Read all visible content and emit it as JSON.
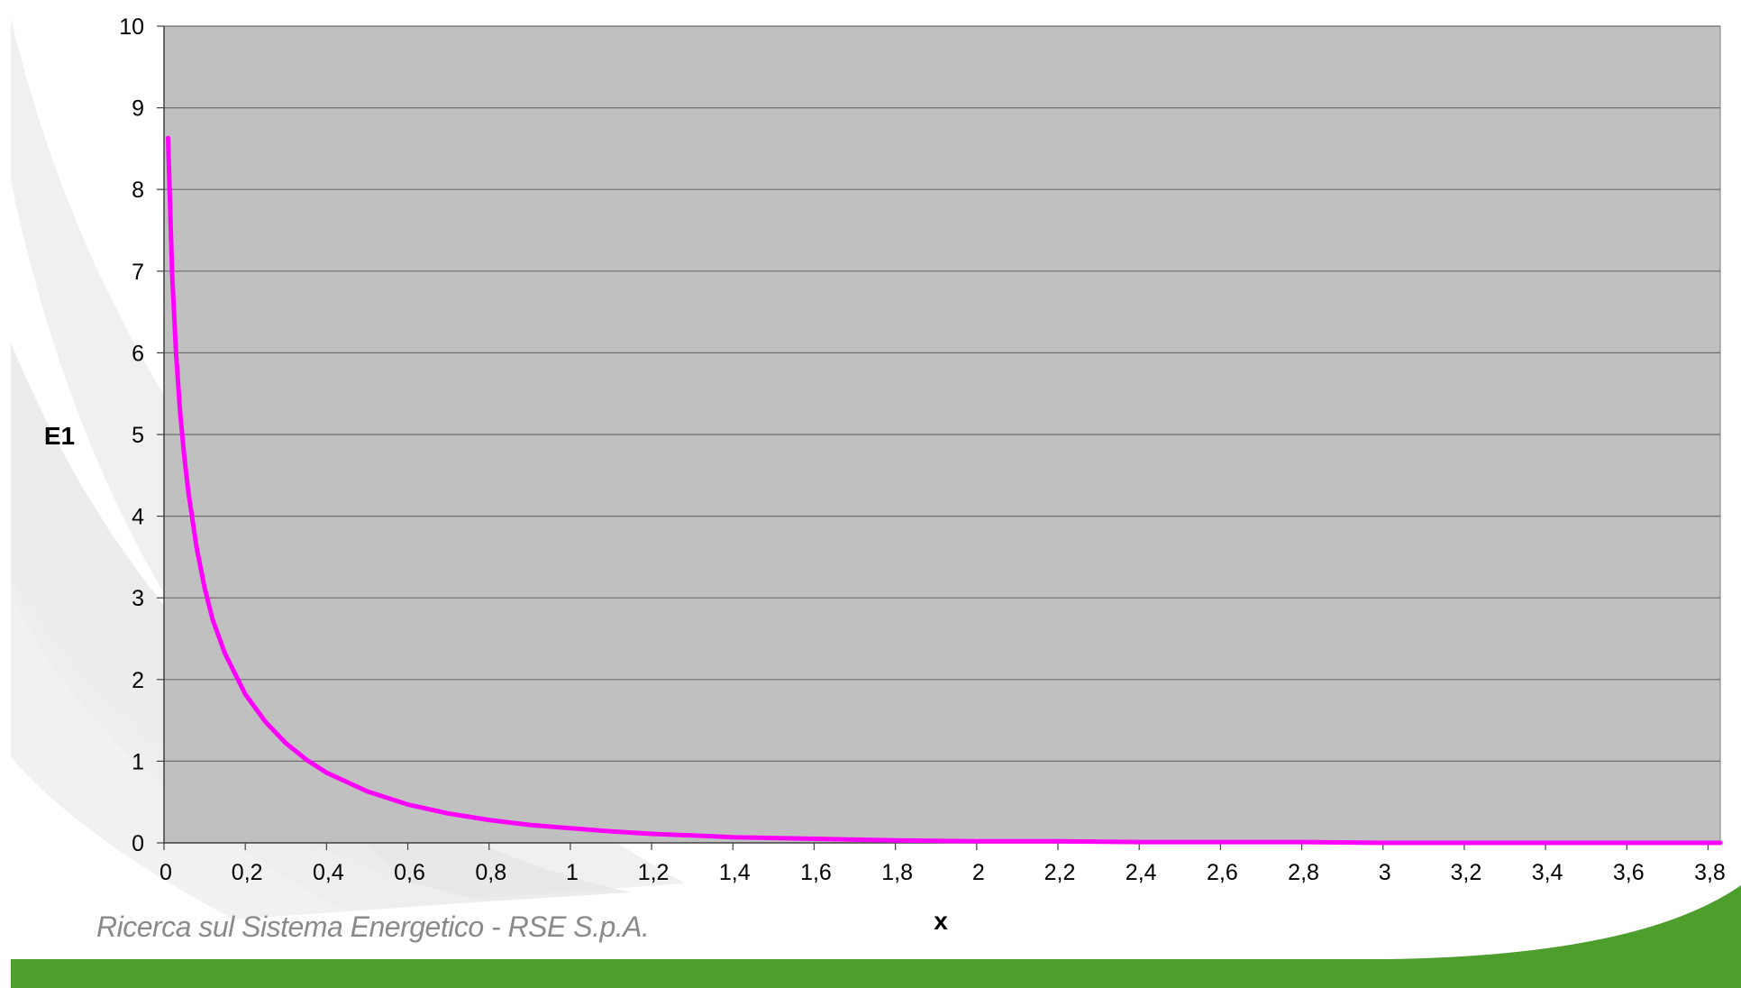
{
  "footer": {
    "text": "Ricerca sul Sistema Energetico - RSE S.p.A."
  },
  "colors": {
    "plot_area": "#c0c0c0",
    "curve": "#ff00ff",
    "footer_bar": "#4e9e2e",
    "gridline": "#6e6e6e"
  },
  "chart_data": {
    "type": "line",
    "title": "",
    "xlabel": "x",
    "ylabel": "E1",
    "xlim": [
      0,
      3.83
    ],
    "ylim": [
      0,
      10
    ],
    "x_ticks": [
      "0",
      "0,2",
      "0,4",
      "0,6",
      "0,8",
      "1",
      "1,2",
      "1,4",
      "1,6",
      "1,8",
      "2",
      "2,2",
      "2,4",
      "2,6",
      "2,8",
      "3",
      "3,2",
      "3,4",
      "3,6",
      "3,8"
    ],
    "y_ticks": [
      "0",
      "1",
      "2",
      "3",
      "4",
      "5",
      "6",
      "7",
      "8",
      "9",
      "10"
    ],
    "grid": {
      "horizontal": true,
      "vertical": false
    },
    "legend": "none",
    "series": [
      {
        "x": [
          0.01,
          0.02,
          0.03,
          0.04,
          0.05,
          0.06,
          0.08,
          0.1,
          0.12,
          0.15,
          0.2,
          0.25,
          0.3,
          0.35,
          0.4,
          0.5,
          0.6,
          0.7,
          0.8,
          0.9,
          1.0,
          1.1,
          1.2,
          1.3,
          1.4,
          1.5,
          1.6,
          1.8,
          2.0,
          2.2,
          2.4,
          2.6,
          2.8,
          3.0,
          3.2,
          3.4,
          3.6,
          3.8,
          3.83
        ],
        "y": [
          8.63,
          6.97,
          5.97,
          5.26,
          4.73,
          4.29,
          3.62,
          3.12,
          2.73,
          2.32,
          1.82,
          1.48,
          1.22,
          1.02,
          0.86,
          0.63,
          0.47,
          0.36,
          0.28,
          0.22,
          0.18,
          0.14,
          0.11,
          0.09,
          0.07,
          0.06,
          0.05,
          0.03,
          0.02,
          0.02,
          0.01,
          0.01,
          0.01,
          0.0,
          0.0,
          0.0,
          0.0,
          0.0,
          0.0
        ]
      }
    ]
  }
}
